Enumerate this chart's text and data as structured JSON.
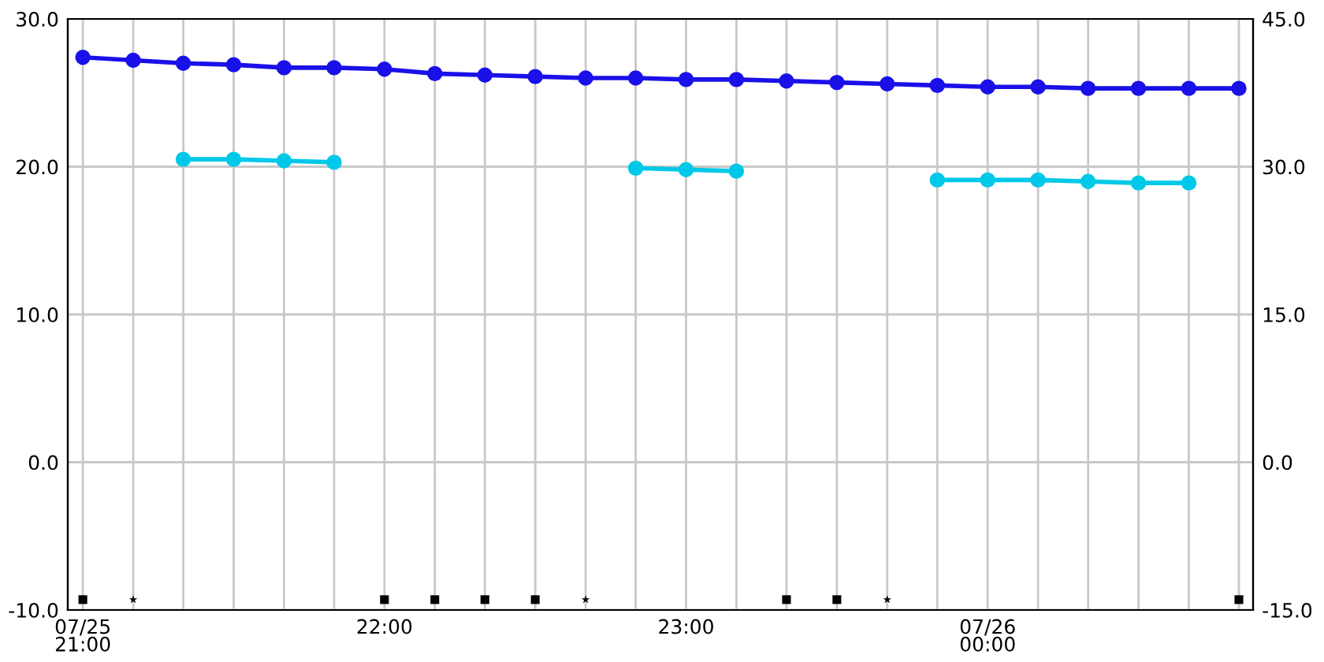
{
  "chart_data": {
    "type": "line",
    "x": [
      21.0,
      21.167,
      21.333,
      21.5,
      21.667,
      21.833,
      22.0,
      22.167,
      22.333,
      22.5,
      22.667,
      22.833,
      23.0,
      23.167,
      23.333,
      23.5,
      23.667,
      23.833,
      24.0,
      24.167,
      24.333,
      24.5,
      24.667,
      24.833
    ],
    "series": [
      {
        "color": "#1a10e8",
        "values": [
          27.4,
          27.2,
          27.0,
          26.9,
          26.7,
          26.7,
          26.6,
          26.3,
          26.2,
          26.1,
          26.0,
          26.0,
          25.9,
          25.9,
          25.8,
          25.7,
          25.6,
          25.5,
          25.4,
          25.4,
          25.3,
          25.3,
          25.3,
          25.3
        ]
      },
      {
        "color": "#00c8e8",
        "values": [
          null,
          null,
          20.5,
          20.5,
          20.4,
          20.3,
          null,
          null,
          null,
          null,
          null,
          19.9,
          19.8,
          19.7,
          null,
          null,
          null,
          19.1,
          19.1,
          19.1,
          19.0,
          18.9,
          18.9,
          null
        ]
      },
      {
        "type": "scatter",
        "marker": "square",
        "color": "#000000",
        "x": [
          21.0,
          22.0,
          22.167,
          22.333,
          22.5,
          23.333,
          23.5,
          24.833
        ],
        "values": [
          -9.3,
          -9.3,
          -9.3,
          -9.3,
          -9.3,
          -9.3,
          -9.3,
          -9.3
        ]
      },
      {
        "type": "scatter",
        "marker": "star",
        "color": "#000000",
        "x": [
          21.167,
          22.667,
          23.667
        ],
        "values": [
          -9.3,
          -9.3,
          -9.3
        ]
      }
    ],
    "xlim": [
      20.95,
      24.88
    ],
    "xticks": [
      {
        "value": 21.0,
        "label": "07/25\n21:00"
      },
      {
        "value": 21.167,
        "label": null
      },
      {
        "value": 21.333,
        "label": null
      },
      {
        "value": 21.5,
        "label": null
      },
      {
        "value": 21.667,
        "label": null
      },
      {
        "value": 21.833,
        "label": null
      },
      {
        "value": 22.0,
        "label": "22:00"
      },
      {
        "value": 22.167,
        "label": null
      },
      {
        "value": 22.333,
        "label": null
      },
      {
        "value": 22.5,
        "label": null
      },
      {
        "value": 22.667,
        "label": null
      },
      {
        "value": 22.833,
        "label": null
      },
      {
        "value": 23.0,
        "label": "23:00"
      },
      {
        "value": 23.167,
        "label": null
      },
      {
        "value": 23.333,
        "label": null
      },
      {
        "value": 23.5,
        "label": null
      },
      {
        "value": 23.667,
        "label": null
      },
      {
        "value": 23.833,
        "label": null
      },
      {
        "value": 24.0,
        "label": "07/26\n00:00"
      },
      {
        "value": 24.167,
        "label": null
      },
      {
        "value": 24.333,
        "label": null
      },
      {
        "value": 24.5,
        "label": null
      },
      {
        "value": 24.667,
        "label": null
      },
      {
        "value": 24.833,
        "label": null
      }
    ],
    "ylim": [
      -10,
      30
    ],
    "yticks": [
      {
        "value": -10,
        "label": "-10.0"
      },
      {
        "value": 0,
        "label": "0.0"
      },
      {
        "value": 10,
        "label": "10.0"
      },
      {
        "value": 20,
        "label": "20.0"
      },
      {
        "value": 30,
        "label": "30.0"
      }
    ],
    "y2lim": [
      -15,
      45
    ],
    "y2ticks": [
      {
        "value": -15,
        "label": "-15.0"
      },
      {
        "value": 0,
        "label": "0.0"
      },
      {
        "value": 15,
        "label": "15.0"
      },
      {
        "value": 30,
        "label": "30.0"
      },
      {
        "value": 45,
        "label": "45.0"
      }
    ],
    "grid": true,
    "marker": "circle",
    "line_style": "solid",
    "legend": false
  }
}
